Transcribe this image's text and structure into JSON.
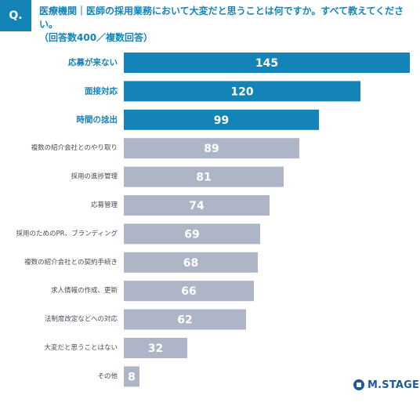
{
  "header": {
    "badge": "Q.",
    "question_line1": "医療機関｜医師の採用業務において大変だと思うことは何ですか。すべて教えてください。",
    "question_line2": "（回答数400／複数回答）"
  },
  "logo": {
    "text": "M.STAGE"
  },
  "colors": {
    "highlight": "#1483b8",
    "normal": "#adb5c6",
    "accent": "#1483b8"
  },
  "chart_data": {
    "type": "bar",
    "orientation": "horizontal",
    "categories": [
      "応募が来ない",
      "面接対応",
      "時間の捻出",
      "複数の紹介会社とのやり取り",
      "採用の進捗管理",
      "応募管理",
      "採用のためのPR、ブランディング",
      "複数の紹介会社との契約手続き",
      "求人情報の作成、更新",
      "法制度改定などへの対応",
      "大変だと思うことはない",
      "その他"
    ],
    "values": [
      145,
      120,
      99,
      89,
      81,
      74,
      69,
      68,
      66,
      62,
      32,
      8
    ],
    "highlighted": [
      true,
      true,
      true,
      false,
      false,
      false,
      false,
      false,
      false,
      false,
      false,
      false
    ],
    "xlim": [
      0,
      145
    ],
    "grid": false,
    "legend": "none"
  }
}
